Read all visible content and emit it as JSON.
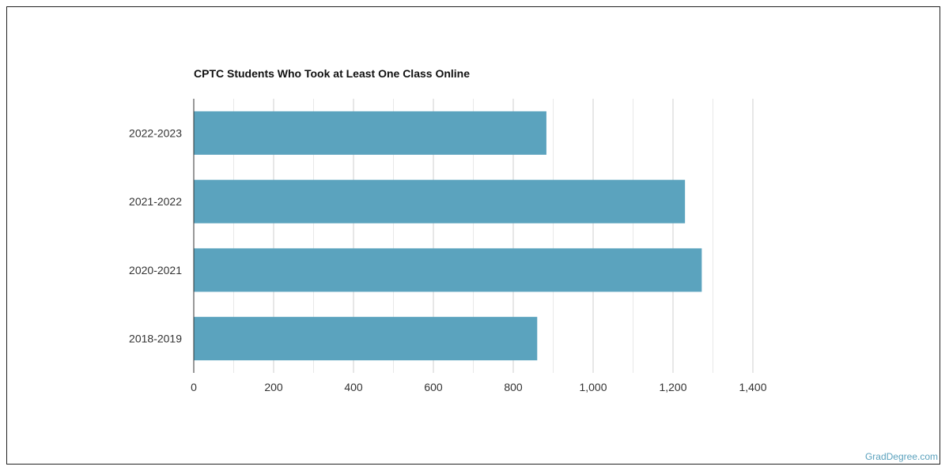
{
  "chart_data": {
    "type": "bar",
    "orientation": "horizontal",
    "title": "CPTC Students Who Took at Least One Class Online",
    "categories": [
      "2022-2023",
      "2021-2022",
      "2020-2021",
      "2018-2019"
    ],
    "values": [
      883,
      1230,
      1272,
      860
    ],
    "x_ticks": [
      "0",
      "200",
      "400",
      "600",
      "800",
      "1,000",
      "1,200",
      "1,400"
    ],
    "xlim": [
      0,
      1400
    ],
    "grid": true,
    "bar_color": "#5ba3be",
    "legend": "none"
  },
  "credit": "GradDegree.com"
}
